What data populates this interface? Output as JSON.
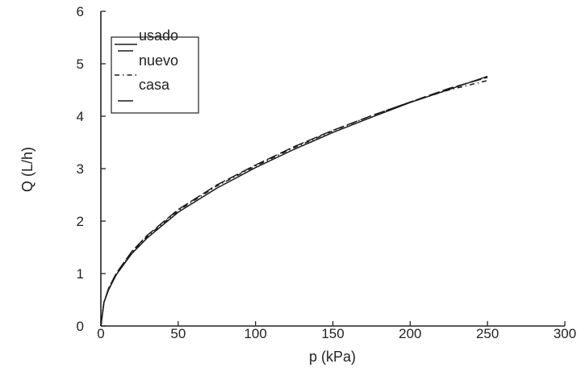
{
  "chart_data": {
    "type": "line",
    "title": "",
    "xlabel": "p (kPa)",
    "ylabel": "Q (L/h)",
    "xlim": [
      0,
      300
    ],
    "ylim": [
      0,
      6
    ],
    "xticks": [
      "0",
      "50",
      "100",
      "150",
      "200",
      "250",
      "300"
    ],
    "yticks": [
      "0",
      "1",
      "2",
      "3",
      "4",
      "5",
      "6"
    ],
    "grid": false,
    "legend_position": "top-left",
    "series": [
      {
        "name": "usado",
        "style": "solid",
        "x": [
          0,
          2,
          5,
          10,
          20,
          30,
          50,
          75,
          100,
          125,
          150,
          175,
          200,
          225,
          250
        ],
        "y": [
          0,
          0.45,
          0.69,
          0.98,
          1.38,
          1.68,
          2.17,
          2.63,
          3.02,
          3.37,
          3.69,
          3.98,
          4.26,
          4.51,
          4.76
        ]
      },
      {
        "name": "nuevo",
        "style": "long-dash",
        "x": [
          0,
          2,
          5,
          10,
          20,
          30,
          50,
          75,
          100,
          125,
          150,
          175,
          200,
          225,
          250
        ],
        "y": [
          0,
          0.45,
          0.72,
          1.01,
          1.42,
          1.73,
          2.22,
          2.69,
          3.07,
          3.42,
          3.73,
          4.01,
          4.27,
          4.53,
          4.74
        ]
      },
      {
        "name": "casa",
        "style": "dash-dot",
        "x": [
          0,
          2,
          5,
          10,
          20,
          30,
          50,
          75,
          100,
          125,
          150,
          175,
          200,
          225,
          250
        ],
        "y": [
          0,
          0.45,
          0.7,
          0.99,
          1.41,
          1.71,
          2.2,
          2.67,
          3.05,
          3.4,
          3.72,
          4.01,
          4.27,
          4.5,
          4.68
        ]
      }
    ],
    "colors": {
      "axis": "#222222",
      "line": "#1a1a1a"
    }
  }
}
